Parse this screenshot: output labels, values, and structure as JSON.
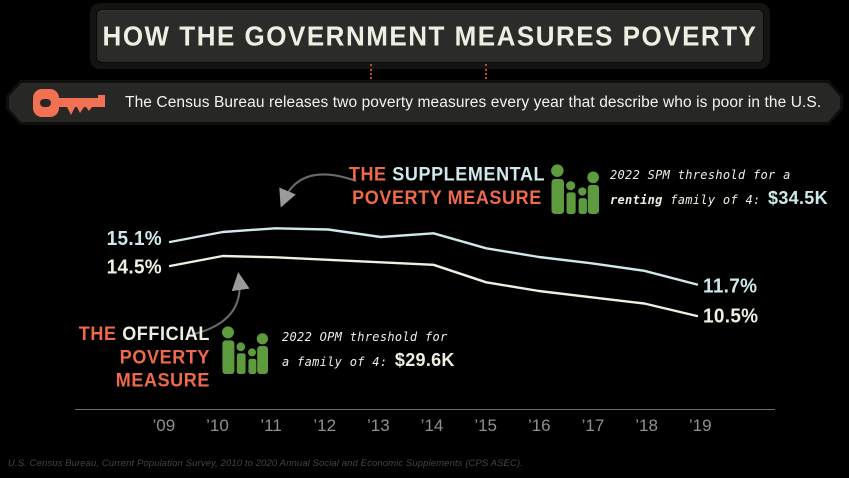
{
  "title": "HOW THE GOVERNMENT MEASURES POVERTY",
  "intro": {
    "text": "The Census Bureau releases two poverty measures every year that describe who is poor in the U.S."
  },
  "spm": {
    "name_the": "THE",
    "name_main": "SUPPLEMENTAL",
    "name_line2": "POVERTY MEASURE",
    "start_value": "15.1%",
    "end_value": "11.7%",
    "threshold_line1": "2022 SPM threshold for a",
    "threshold_emphasis": "renting",
    "threshold_line2": "family of 4:",
    "threshold_value": "$34.5K"
  },
  "opm": {
    "name_the": "THE",
    "name_main": "OFFICIAL",
    "name_line2": "POVERTY MEASURE",
    "start_value": "14.5%",
    "end_value": "10.5%",
    "threshold_line1": "2022 OPM threshold for",
    "threshold_line2": "a family of 4:",
    "threshold_value": "$29.6K"
  },
  "source": "U.S. Census Bureau, Current Population Survey, 2010 to 2020 Annual Social and Economic Supplements (CPS ASEC).",
  "colors": {
    "background": "#000000",
    "panel": "#2b2b29",
    "accent_orange": "#ee6a48",
    "key_orange": "#f47053",
    "spm_line": "#cfe9eb",
    "opm_line": "#f0efe2",
    "family_icon_green": "#5d9b3e",
    "axis_gray": "#909090"
  },
  "chart_data": {
    "type": "line",
    "x": [
      2009,
      2010,
      2011,
      2012,
      2013,
      2014,
      2015,
      2016,
      2017,
      2018,
      2019
    ],
    "x_tick_labels": [
      "’09",
      "’10",
      "’11",
      "’12",
      "’13",
      "’14",
      "’15",
      "’16",
      "’17",
      "’18",
      "’19"
    ],
    "series": [
      {
        "name": "The Supplemental Poverty Measure",
        "color": "#cfe9eb",
        "values": [
          15.1,
          15.9,
          16.2,
          16.1,
          15.5,
          15.8,
          14.6,
          13.9,
          13.4,
          12.8,
          11.7
        ]
      },
      {
        "name": "The Official Poverty Measure",
        "color": "#f0efe2",
        "values": [
          14.5,
          15.3,
          15.2,
          15.0,
          14.8,
          14.6,
          13.2,
          12.5,
          12.0,
          11.5,
          10.5
        ]
      }
    ],
    "start_end_labels": {
      "spm": [
        "15.1%",
        "11.7%"
      ],
      "opm": [
        "14.5%",
        "10.5%"
      ]
    },
    "grid": false,
    "legend_position": "inline-labels",
    "ylim_percent": [
      10,
      17
    ]
  }
}
